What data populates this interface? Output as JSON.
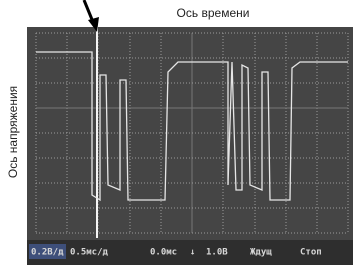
{
  "annotations": {
    "time_axis": "Ось времени",
    "voltage_axis": "Ось напряжения"
  },
  "status_bar": {
    "items": [
      "0.2В/д",
      "0.5мс/д",
      "0.0мс",
      "↓",
      "1.0В",
      "Ждущ",
      "Стоп"
    ]
  }
}
